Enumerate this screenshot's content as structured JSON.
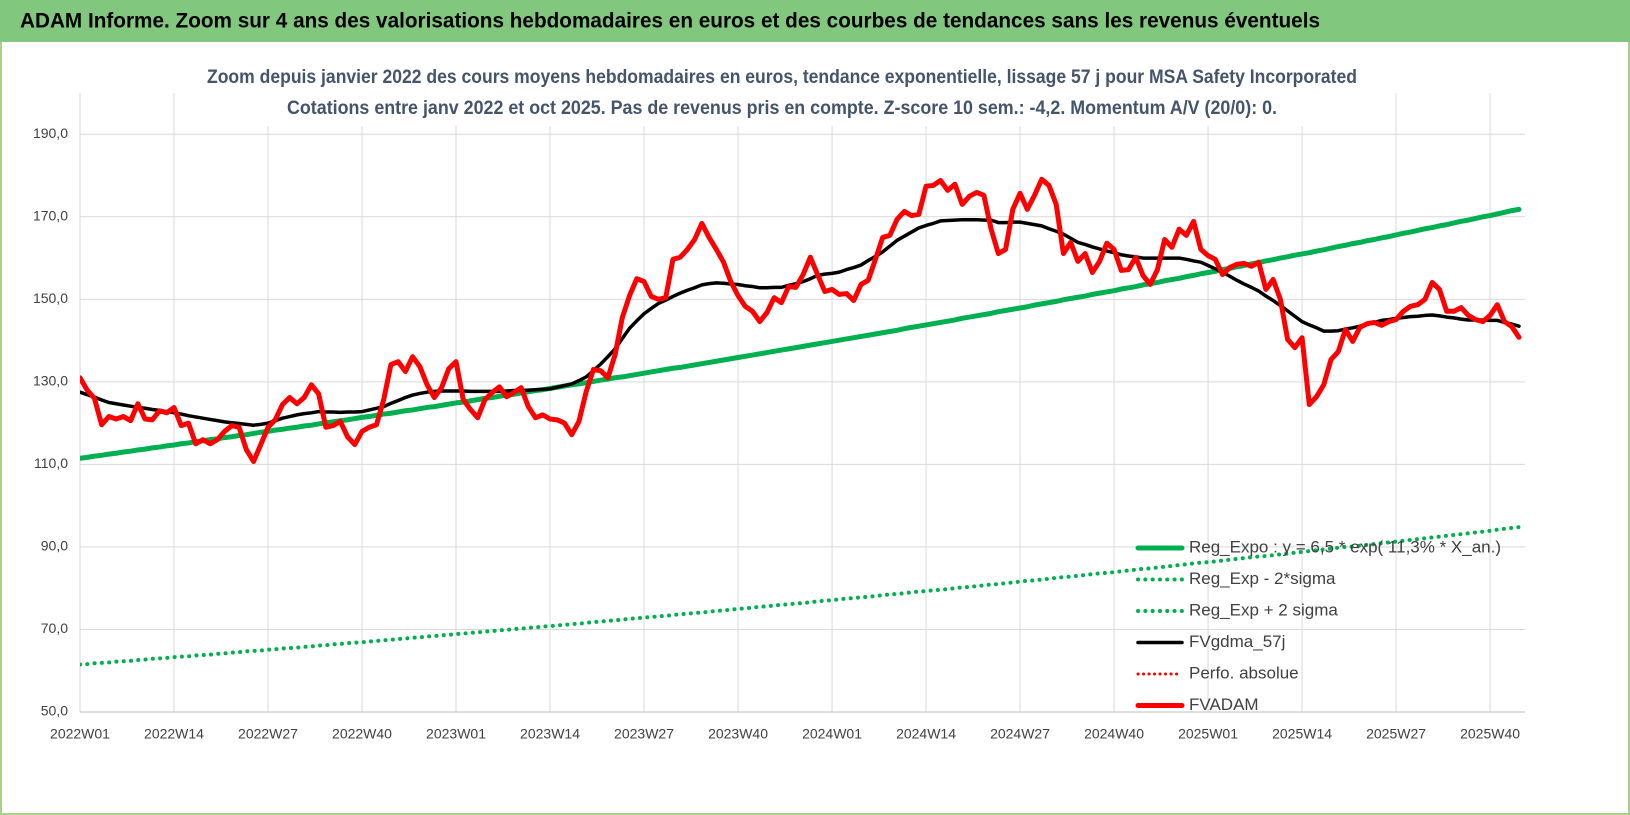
{
  "header": {
    "title": "ADAM Informe. Zoom sur 4 ans des valorisations hebdomadaires en euros et des courbes de tendances sans les revenus éventuels"
  },
  "chart_data": {
    "type": "line",
    "title": "Zoom depuis janvier 2022 des cours moyens hebdomadaires en euros, tendance exponentielle, lissage 57 j pour MSA Safety Incorporated",
    "subtitle": "Cotations entre janv 2022 et oct 2025. Pas de revenus pris en compte. Z-score 10 sem.: -4,2. Momentum A/V (20/0): 0.",
    "grid": true,
    "legend": "right",
    "ylim": [
      50,
      200
    ],
    "yticks": [
      {
        "value": 50,
        "label": "50,0"
      },
      {
        "value": 70,
        "label": "70,0"
      },
      {
        "value": 90,
        "label": "90,0"
      },
      {
        "value": 110,
        "label": "110,0"
      },
      {
        "value": 130,
        "label": "130,0"
      },
      {
        "value": 150,
        "label": "150,0"
      },
      {
        "value": 170,
        "label": "170,0"
      },
      {
        "value": 190,
        "label": "190,0"
      }
    ],
    "categories": [
      "2022W01",
      null,
      null,
      null,
      null,
      null,
      null,
      null,
      null,
      null,
      null,
      null,
      null,
      "2022W14",
      null,
      null,
      null,
      null,
      null,
      null,
      null,
      null,
      null,
      null,
      null,
      null,
      "2022W27",
      null,
      null,
      null,
      null,
      null,
      null,
      null,
      null,
      null,
      null,
      null,
      null,
      "2022W40",
      null,
      null,
      null,
      null,
      null,
      null,
      null,
      null,
      null,
      null,
      null,
      null,
      "2023W01",
      null,
      null,
      null,
      null,
      null,
      null,
      null,
      null,
      null,
      null,
      null,
      null,
      "2023W14",
      null,
      null,
      null,
      null,
      null,
      null,
      null,
      null,
      null,
      null,
      null,
      null,
      "2023W27",
      null,
      null,
      null,
      null,
      null,
      null,
      null,
      null,
      null,
      null,
      null,
      null,
      "2023W40",
      null,
      null,
      null,
      null,
      null,
      null,
      null,
      null,
      null,
      null,
      null,
      null,
      "2024W01",
      null,
      null,
      null,
      null,
      null,
      null,
      null,
      null,
      null,
      null,
      null,
      null,
      "2024W14",
      null,
      null,
      null,
      null,
      null,
      null,
      null,
      null,
      null,
      null,
      null,
      null,
      "2024W27",
      null,
      null,
      null,
      null,
      null,
      null,
      null,
      null,
      null,
      null,
      null,
      null,
      "2024W40",
      null,
      null,
      null,
      null,
      null,
      null,
      null,
      null,
      null,
      null,
      null,
      null,
      "2025W01",
      null,
      null,
      null,
      null,
      null,
      null,
      null,
      null,
      null,
      null,
      null,
      null,
      "2025W14",
      null,
      null,
      null,
      null,
      null,
      null,
      null,
      null,
      null,
      null,
      null,
      null,
      "2025W27",
      null,
      null,
      null,
      null,
      null,
      null,
      null,
      null,
      null,
      null,
      null,
      null,
      "2025W40",
      null,
      null,
      null,
      null
    ],
    "series": [
      {
        "name": "Reg_Expo : y = 6,5 * exp( 11,3% * X_an.)",
        "color": "#00b050",
        "style": "solid",
        "linewidth": 5,
        "values": [
          111.5,
          111.7,
          112.0,
          112.2,
          112.5,
          112.7,
          113.0,
          113.2,
          113.5,
          113.7,
          114.0,
          114.2,
          114.5,
          114.7,
          115.0,
          115.2,
          115.5,
          115.7,
          116.0,
          116.2,
          116.5,
          116.7,
          117.0,
          117.2,
          117.5,
          117.8,
          118.0,
          118.3,
          118.5,
          118.8,
          119.0,
          119.3,
          119.5,
          119.8,
          120.1,
          120.3,
          120.6,
          120.8,
          121.1,
          121.4,
          121.6,
          121.9,
          122.2,
          122.4,
          122.7,
          123.0,
          123.2,
          123.5,
          123.8,
          124.0,
          124.3,
          124.6,
          124.9,
          125.1,
          125.4,
          125.7,
          126.0,
          126.2,
          126.5,
          126.8,
          127.0,
          127.3,
          127.6,
          127.9,
          128.1,
          128.4,
          128.7,
          129.0,
          129.3,
          129.5,
          129.8,
          130.1,
          130.4,
          130.7,
          131.0,
          131.2,
          131.5,
          131.8,
          132.1,
          132.4,
          132.7,
          133.0,
          133.3,
          133.5,
          133.8,
          134.1,
          134.4,
          134.7,
          135.0,
          135.3,
          135.6,
          135.9,
          136.2,
          136.5,
          136.8,
          137.1,
          137.4,
          137.7,
          138.0,
          138.3,
          138.6,
          138.9,
          139.2,
          139.5,
          139.8,
          140.1,
          140.4,
          140.7,
          141.0,
          141.3,
          141.6,
          141.9,
          142.2,
          142.5,
          142.9,
          143.2,
          143.5,
          143.8,
          144.1,
          144.4,
          144.7,
          145.0,
          145.4,
          145.7,
          146.0,
          146.3,
          146.6,
          147.0,
          147.3,
          147.6,
          147.9,
          148.2,
          148.6,
          148.9,
          149.2,
          149.5,
          149.9,
          150.2,
          150.5,
          150.8,
          151.2,
          151.5,
          151.8,
          152.1,
          152.5,
          152.8,
          153.1,
          153.5,
          153.8,
          154.1,
          154.5,
          154.8,
          155.1,
          155.5,
          155.8,
          156.2,
          156.5,
          156.8,
          157.2,
          157.5,
          157.9,
          158.2,
          158.6,
          158.9,
          159.3,
          159.6,
          160.0,
          160.3,
          160.7,
          161.0,
          161.3,
          161.7,
          162.0,
          162.4,
          162.8,
          163.1,
          163.5,
          163.8,
          164.2,
          164.5,
          164.9,
          165.2,
          165.6,
          166.0,
          166.3,
          166.7,
          167.1,
          167.4,
          167.8,
          168.1,
          168.5,
          168.9,
          169.2,
          169.6,
          170.0,
          170.3,
          170.7,
          171.1,
          171.5,
          171.8
        ]
      },
      {
        "name": "Reg_Exp - 2*sigma",
        "color": "#00b050",
        "style": "dotted",
        "linewidth": 4,
        "values": [
          61.5,
          61.6,
          61.8,
          61.9,
          62.0,
          62.2,
          62.3,
          62.4,
          62.6,
          62.7,
          62.9,
          63.0,
          63.1,
          63.3,
          63.4,
          63.5,
          63.7,
          63.8,
          63.9,
          64.1,
          64.2,
          64.4,
          64.5,
          64.7,
          64.8,
          64.9,
          65.1,
          65.2,
          65.4,
          65.5,
          65.6,
          65.8,
          65.9,
          66.1,
          66.2,
          66.4,
          66.5,
          66.7,
          66.8,
          66.9,
          67.1,
          67.2,
          67.4,
          67.5,
          67.7,
          67.8,
          68.0,
          68.1,
          68.3,
          68.4,
          68.6,
          68.7,
          68.9,
          69.0,
          69.2,
          69.3,
          69.5,
          69.6,
          69.8,
          69.9,
          70.1,
          70.2,
          70.4,
          70.5,
          70.7,
          70.8,
          71.0,
          71.1,
          71.3,
          71.4,
          71.6,
          71.8,
          71.9,
          72.1,
          72.2,
          72.4,
          72.6,
          72.7,
          72.9,
          73.0,
          73.2,
          73.3,
          73.5,
          73.7,
          73.8,
          74.0,
          74.1,
          74.3,
          74.5,
          74.6,
          74.8,
          75.0,
          75.1,
          75.3,
          75.5,
          75.6,
          75.8,
          76.0,
          76.1,
          76.3,
          76.4,
          76.6,
          76.8,
          77.0,
          77.1,
          77.3,
          77.5,
          77.6,
          77.8,
          77.9,
          78.1,
          78.3,
          78.5,
          78.6,
          78.8,
          79.0,
          79.2,
          79.3,
          79.5,
          79.6,
          79.8,
          80.0,
          80.2,
          80.3,
          80.5,
          80.7,
          80.9,
          81.0,
          81.2,
          81.4,
          81.6,
          81.8,
          81.9,
          82.1,
          82.3,
          82.5,
          82.7,
          82.8,
          83.0,
          83.2,
          83.4,
          83.6,
          83.7,
          83.9,
          84.1,
          84.3,
          84.5,
          84.7,
          84.8,
          85.0,
          85.2,
          85.4,
          85.6,
          85.8,
          86.0,
          86.2,
          86.3,
          86.5,
          86.7,
          86.9,
          87.1,
          87.3,
          87.5,
          87.7,
          87.8,
          88.0,
          88.2,
          88.4,
          88.6,
          88.8,
          89.0,
          89.2,
          89.4,
          89.6,
          89.8,
          90.0,
          90.1,
          90.3,
          90.5,
          90.7,
          90.9,
          91.1,
          91.3,
          91.5,
          91.7,
          91.9,
          92.1,
          92.3,
          92.5,
          92.7,
          92.9,
          93.1,
          93.3,
          93.5,
          93.7,
          93.9,
          94.2,
          94.4,
          94.6,
          94.8
        ]
      },
      {
        "name": "Reg_Exp + 2 sigma",
        "color": "#00b050",
        "style": "dotted",
        "linewidth": 4
      },
      {
        "name": "FVgdma_57j",
        "color": "#000000",
        "style": "solid",
        "linewidth": 3.5,
        "values": [
          127.5,
          126.9,
          126.3,
          125.6,
          125.0,
          124.7,
          124.4,
          124.1,
          123.8,
          123.6,
          123.3,
          123.1,
          122.8,
          122.5,
          122.2,
          121.8,
          121.5,
          121.2,
          120.9,
          120.6,
          120.3,
          120.1,
          119.9,
          119.7,
          119.5,
          119.7,
          120.0,
          120.6,
          121.2,
          121.6,
          122.0,
          122.3,
          122.5,
          122.8,
          122.7,
          122.7,
          122.6,
          122.7,
          122.7,
          122.8,
          123.2,
          123.6,
          124.0,
          124.8,
          125.5,
          126.2,
          126.8,
          127.2,
          127.5,
          127.7,
          127.8,
          127.8,
          127.8,
          127.8,
          127.7,
          127.7,
          127.7,
          127.7,
          127.7,
          127.8,
          127.9,
          127.9,
          128.0,
          128.1,
          128.2,
          128.3,
          128.7,
          129.1,
          129.5,
          130.3,
          131.2,
          132.7,
          134.3,
          136.1,
          138.0,
          140.5,
          143.0,
          144.8,
          146.5,
          147.8,
          149.0,
          149.8,
          150.7,
          151.5,
          152.2,
          152.8,
          153.5,
          153.8,
          154.0,
          153.9,
          153.7,
          153.6,
          153.3,
          153.1,
          152.8,
          152.8,
          152.9,
          152.9,
          153.4,
          153.8,
          154.3,
          155.0,
          155.8,
          156.1,
          156.3,
          156.6,
          157.2,
          157.7,
          158.3,
          159.4,
          160.4,
          161.5,
          162.9,
          164.3,
          165.3,
          166.3,
          167.3,
          167.9,
          168.4,
          169.0,
          169.1,
          169.2,
          169.3,
          169.3,
          169.3,
          169.2,
          169.2,
          168.6,
          168.6,
          168.7,
          168.7,
          168.4,
          168.1,
          167.8,
          167.1,
          166.5,
          165.8,
          164.8,
          163.8,
          163.3,
          162.7,
          162.2,
          161.7,
          161.3,
          160.8,
          160.5,
          160.3,
          160.0,
          160.0,
          160.0,
          160.0,
          160.0,
          160.0,
          159.7,
          159.3,
          159.0,
          158.2,
          157.4,
          156.6,
          155.6,
          154.6,
          153.7,
          152.9,
          152.0,
          150.8,
          149.7,
          148.5,
          147.2,
          145.9,
          144.6,
          143.8,
          143.1,
          142.3,
          142.3,
          142.4,
          142.8,
          143.1,
          143.5,
          144.0,
          144.4,
          144.9,
          145.1,
          145.4,
          145.6,
          145.8,
          145.9,
          146.1,
          146.2,
          146.0,
          145.7,
          145.5,
          145.2,
          145.0,
          145.0,
          145.0,
          144.9,
          144.9,
          144.4,
          144.0,
          143.5
        ]
      },
      {
        "name": "Perfo. absolue",
        "color": "#ff0000",
        "style": "dotted",
        "linewidth": 3
      },
      {
        "name": "FVADAM",
        "color": "#ff0000",
        "style": "solid",
        "linewidth": 5,
        "values": [
          131.0,
          128,
          126,
          119.6,
          121.6,
          121,
          121.6,
          120.6,
          124.7,
          121,
          120.8,
          123,
          122.5,
          123.8,
          119.4,
          120,
          115,
          116,
          115,
          116,
          118,
          119.4,
          119,
          113.6,
          110.7,
          114.8,
          119,
          120.8,
          124.5,
          126.2,
          124.7,
          126.2,
          129.3,
          127.1,
          119,
          119.4,
          120.4,
          116.7,
          114.8,
          118,
          119,
          119.6,
          125.7,
          134.2,
          134.9,
          132.5,
          136.1,
          133.7,
          129.3,
          126.2,
          128.6,
          133.2,
          134.9,
          125.7,
          123.3,
          121.3,
          125.7,
          127.4,
          128.8,
          126.4,
          127.4,
          128.6,
          124,
          121.3,
          122,
          121,
          120.8,
          120,
          117.2,
          120.4,
          127.6,
          133,
          132.7,
          131,
          136.6,
          145.6,
          150.9,
          155,
          154.3,
          150.7,
          150,
          150.4,
          159.7,
          160.2,
          162.1,
          164.5,
          168.4,
          165,
          162.1,
          159,
          154.3,
          150.9,
          148.3,
          147.1,
          144.6,
          146.8,
          150.4,
          149.2,
          153.1,
          152.9,
          156,
          160.2,
          156,
          151.9,
          152.4,
          151.2,
          151.4,
          149.7,
          153.6,
          154.6,
          159.7,
          165,
          165.5,
          169.4,
          171.3,
          170.3,
          170.6,
          177.4,
          177.6,
          178.8,
          176.4,
          177.9,
          173,
          175,
          175.9,
          175.2,
          167,
          161.1,
          162.1,
          171.8,
          175.7,
          171.8,
          175.2,
          179.1,
          177.6,
          173,
          161.1,
          163.8,
          159.2,
          161.1,
          156.5,
          159.2,
          163.6,
          162.1,
          157,
          157.2,
          160.2,
          155.8,
          153.6,
          157.2,
          164.5,
          162.6,
          167,
          165.5,
          168.9,
          162.1,
          160.6,
          159.7,
          156,
          157.7,
          158.5,
          158.7,
          158,
          159,
          152.4,
          154.8,
          150,
          140.3,
          138.3,
          140.7,
          124.5,
          126.4,
          129.3,
          135.4,
          137.3,
          142.7,
          139.8,
          143.2,
          144.1,
          144.4,
          143.7,
          144.6,
          145.1,
          147.1,
          148.3,
          148.7,
          150,
          154.1,
          152.4,
          147.1,
          147.1,
          148,
          146.1,
          145.1,
          144.6,
          146.1,
          148.7,
          144.6,
          143.4,
          140.8
        ]
      }
    ]
  }
}
